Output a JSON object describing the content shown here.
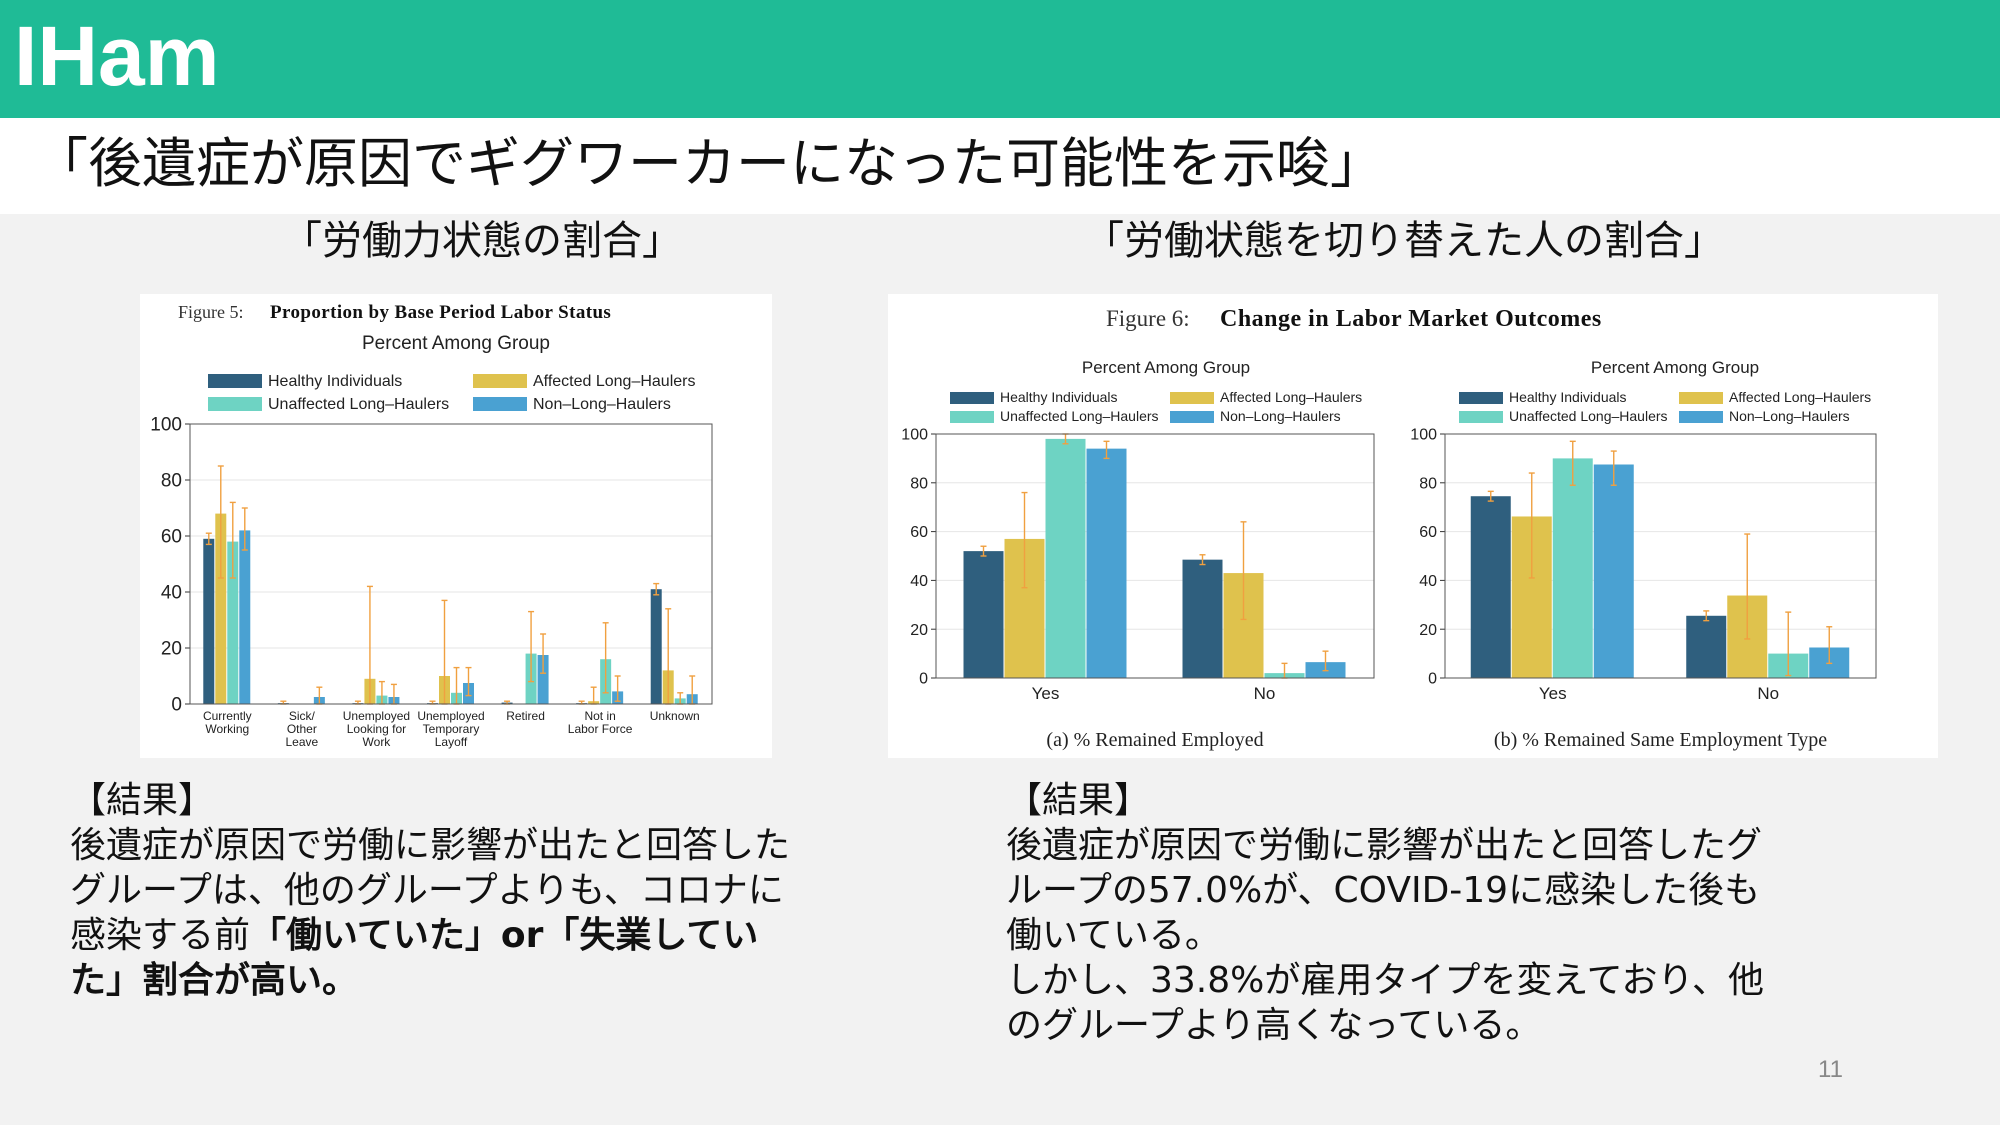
{
  "header": {
    "brand": "IHam",
    "title": "「後遺症が原因でギグワーカーになった可能性を示唆」"
  },
  "left": {
    "heading": "「労働力状態の割合」",
    "result_label": "【結果】",
    "result_lines": [
      [
        {
          "t": "後遺症が原因で労働に影響が出たと回答した"
        }
      ],
      [
        {
          "t": "グループは、他のグループよりも、コロナに"
        }
      ],
      [
        {
          "t": "感染する前"
        },
        {
          "t": "「働いていた」or「失業してい",
          "b": true
        }
      ],
      [
        {
          "t": "た」割合が高い。",
          "b": true
        }
      ]
    ]
  },
  "right": {
    "heading": "「労働状態を切り替えた人の割合」",
    "result_label": "【結果】",
    "result_lines": [
      [
        {
          "t": "後遺症が原因で労働に影響が出たと回答したグ"
        }
      ],
      [
        {
          "t": "ループの57.0%が、COVID-19に感染した後も"
        }
      ],
      [
        {
          "t": "働いている。"
        }
      ],
      [
        {
          "t": "しかし、33.8%が雇用タイプを変えており、他"
        }
      ],
      [
        {
          "t": "のグループより高くなっている。"
        }
      ]
    ]
  },
  "page_number": "11",
  "colors": {
    "healthy": "#2f5f7e",
    "affected": "#dfc24d",
    "unaffected": "#6ed3c3",
    "non": "#4aa1d2",
    "error": "#f0a040",
    "accent": "#1fbb96"
  },
  "chart_data": [
    {
      "type": "bar",
      "title_prefix": "Figure 5:",
      "title": "Proportion by Base Period Labor Status",
      "ylabel": "Percent Among Group",
      "ylim": [
        0,
        100
      ],
      "yticks": [
        0,
        20,
        40,
        60,
        80,
        100
      ],
      "legend_position": "top",
      "categories": [
        [
          "Currently",
          "Working"
        ],
        [
          "Sick/",
          "Other",
          "Leave"
        ],
        [
          "Unemployed",
          "Looking for",
          "Work"
        ],
        [
          "Unemployed",
          "Temporary",
          "Layoff"
        ],
        [
          "Retired"
        ],
        [
          "Not in",
          "Labor Force"
        ],
        [
          "Unknown"
        ]
      ],
      "series": [
        {
          "name": "Healthy Individuals",
          "color": "#2f5f7e",
          "values": [
            59,
            0.3,
            0.3,
            0.3,
            0.5,
            0.3,
            41
          ],
          "err_low": [
            57,
            0,
            0,
            0,
            0,
            0,
            39
          ],
          "err_high": [
            61,
            1,
            1,
            1,
            1,
            1,
            43
          ]
        },
        {
          "name": "Affected Long–Haulers",
          "color": "#dfc24d",
          "values": [
            68,
            0,
            9,
            10,
            0,
            1,
            12
          ],
          "err_low": [
            45,
            0,
            0,
            0,
            0,
            0,
            0
          ],
          "err_high": [
            85,
            0,
            42,
            37,
            0,
            6,
            34
          ]
        },
        {
          "name": "Unaffected Long–Haulers",
          "color": "#6ed3c3",
          "values": [
            58,
            0,
            3,
            4,
            18,
            16,
            2
          ],
          "err_low": [
            45,
            0,
            0,
            0,
            8,
            4,
            0
          ],
          "err_high": [
            72,
            0,
            8,
            13,
            33,
            29,
            4
          ]
        },
        {
          "name": "Non–Long–Haulers",
          "color": "#4aa1d2",
          "values": [
            62,
            2.5,
            2.5,
            7.5,
            17.5,
            4.5,
            3.5
          ],
          "err_low": [
            55,
            0,
            0,
            3,
            11,
            1,
            0
          ],
          "err_high": [
            70,
            6,
            7,
            13,
            25,
            10,
            10
          ]
        }
      ]
    },
    {
      "type": "bar",
      "figure_title_prefix": "Figure 6:",
      "figure_title": "Change in Labor Market Outcomes",
      "subtitle": "(a) % Remained Employed",
      "ylabel": "Percent Among Group",
      "ylim": [
        0,
        100
      ],
      "yticks": [
        0,
        20,
        40,
        60,
        80,
        100
      ],
      "legend_position": "top",
      "categories": [
        [
          "Yes"
        ],
        [
          "No"
        ]
      ],
      "series": [
        {
          "name": "Healthy Individuals",
          "color": "#2f5f7e",
          "values": [
            52,
            48.5
          ],
          "err_low": [
            50,
            46.5
          ],
          "err_high": [
            54,
            50.5
          ]
        },
        {
          "name": "Affected Long–Haulers",
          "color": "#dfc24d",
          "values": [
            57,
            43
          ],
          "err_low": [
            37,
            24
          ],
          "err_high": [
            76,
            64
          ]
        },
        {
          "name": "Unaffected Long–Haulers",
          "color": "#6ed3c3",
          "values": [
            98,
            2
          ],
          "err_low": [
            96,
            0
          ],
          "err_high": [
            100,
            6
          ]
        },
        {
          "name": "Non–Long–Haulers",
          "color": "#4aa1d2",
          "values": [
            94,
            6.5
          ],
          "err_low": [
            90,
            3
          ],
          "err_high": [
            97,
            11
          ]
        }
      ]
    },
    {
      "type": "bar",
      "subtitle": "(b) % Remained Same Employment Type",
      "ylabel": "Percent Among Group",
      "ylim": [
        0,
        100
      ],
      "yticks": [
        0,
        20,
        40,
        60,
        80,
        100
      ],
      "legend_position": "top",
      "categories": [
        [
          "Yes"
        ],
        [
          "No"
        ]
      ],
      "series": [
        {
          "name": "Healthy Individuals",
          "color": "#2f5f7e",
          "values": [
            74.5,
            25.5
          ],
          "err_low": [
            72.5,
            23.5
          ],
          "err_high": [
            76.5,
            27.5
          ]
        },
        {
          "name": "Affected Long–Haulers",
          "color": "#dfc24d",
          "values": [
            66.2,
            33.8
          ],
          "err_low": [
            41,
            16
          ],
          "err_high": [
            84,
            59
          ]
        },
        {
          "name": "Unaffected Long–Haulers",
          "color": "#6ed3c3",
          "values": [
            90,
            10
          ],
          "err_low": [
            79,
            1
          ],
          "err_high": [
            97,
            27
          ]
        },
        {
          "name": "Non–Long–Haulers",
          "color": "#4aa1d2",
          "values": [
            87.5,
            12.5
          ],
          "err_low": [
            79,
            6
          ],
          "err_high": [
            93,
            21
          ]
        }
      ]
    }
  ]
}
